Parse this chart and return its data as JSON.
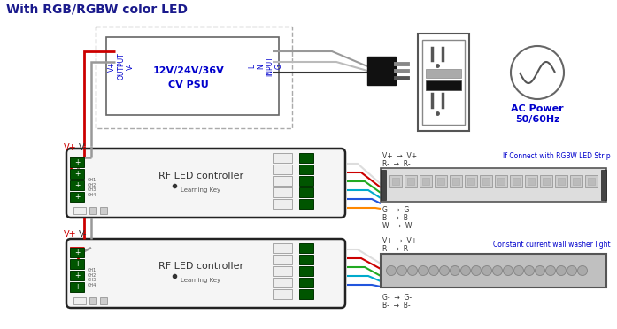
{
  "title": "With RGB/RGBW color LED",
  "title_color": "#1a1a8c",
  "title_fontsize": 10,
  "bg_color": "#ffffff",
  "psu_inner_label1": "12V/24V/36V",
  "psu_inner_label2": "CV PSU",
  "controller_label": "RF LED controller",
  "controller_sublabel": "Learning Key",
  "ac_label1": "AC Power",
  "ac_label2": "50/60Hz",
  "led_strip_label": "If Connect with RGBW LED Strip",
  "wall_washer_label": "Constant current wall washer light",
  "wire_red": "#cc0000",
  "wire_gray": "#999999",
  "wire_black": "#111111",
  "wire_green": "#22aa22",
  "wire_blue": "#2255dd",
  "wire_cyan": "#00aacc",
  "wire_orange": "#ff8800",
  "wire_white": "#dddddd",
  "ctrl_body_fc": "#f5f5f5",
  "ctrl_body_ec": "#222222",
  "terminal_fc": "#005500",
  "terminal_ec": "#003300",
  "psu_label_color": "#0000cc",
  "strip_fc": "#e0e0e0",
  "strip_ec": "#666666",
  "washer_fc": "#c8c8c8",
  "washer_ec": "#555555"
}
